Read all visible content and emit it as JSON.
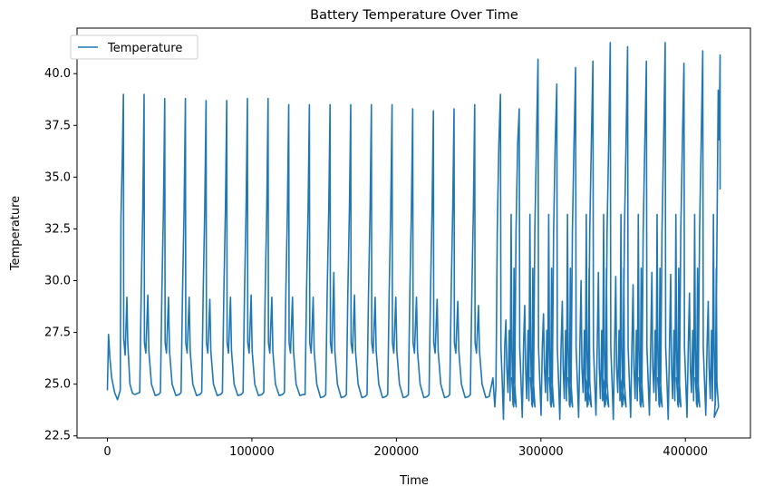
{
  "chart_data": {
    "type": "line",
    "title": "Battery Temperature Over Time",
    "xlabel": "Time",
    "ylabel": "Temperature",
    "xlim": [
      -21000,
      445000
    ],
    "ylim": [
      22.4,
      42.2
    ],
    "xticks": [
      0,
      100000,
      200000,
      300000,
      400000
    ],
    "xtick_labels": [
      "0",
      "100000",
      "200000",
      "300000",
      "400000"
    ],
    "yticks": [
      22.5,
      25.0,
      27.5,
      30.0,
      32.5,
      35.0,
      37.5,
      40.0
    ],
    "ytick_labels": [
      "22.5",
      "25.0",
      "27.5",
      "30.0",
      "32.5",
      "35.0",
      "37.5",
      "40.0"
    ],
    "grid": false,
    "legend_position": "top-left",
    "series": [
      {
        "name": "Temperature",
        "color": "#1f77b4",
        "approximate_cycles": {
          "start_time": 0,
          "start_temperature": 24.7,
          "initial_peak": 27.4,
          "early_discharge_peaks": [
            39.0,
            39.0,
            38.8,
            38.8,
            38.7,
            38.7,
            38.8,
            38.8,
            38.5,
            38.5,
            38.5,
            38.5,
            38.5,
            38.5,
            38.3,
            38.2,
            38.3,
            38.5
          ],
          "early_secondary_peaks": [
            29.2,
            29.3,
            29.2,
            29.2,
            29.1,
            29.2,
            29.3,
            29.2,
            29.2,
            29.2,
            30.4,
            29.3,
            29.2,
            29.2,
            29.2,
            29.1,
            29.0,
            28.8
          ],
          "minimum_range": [
            23.3,
            24.6
          ],
          "late_peaks": [
            39.0,
            38.3,
            40.7,
            39.5,
            40.3,
            40.6,
            41.5,
            41.3,
            40.6,
            41.5,
            40.5,
            41.1
          ],
          "end_time": 424000,
          "end_temperature": 34.4
        }
      }
    ]
  }
}
